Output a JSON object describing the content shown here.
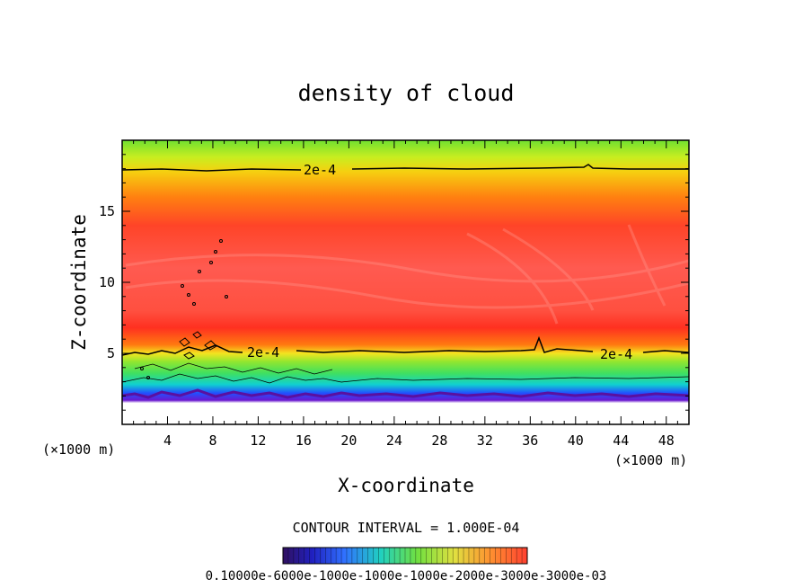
{
  "chart_data": {
    "type": "heatmap",
    "title": "density of cloud",
    "xlabel": "X-coordinate",
    "ylabel": "Z-coordinate",
    "x_unit": "(×1000 m)",
    "y_unit": "(×1000 m)",
    "x_ticks": [
      4,
      8,
      12,
      16,
      20,
      24,
      28,
      32,
      36,
      40,
      44,
      48
    ],
    "y_ticks": [
      5,
      10,
      15
    ],
    "xlim": [
      0,
      50
    ],
    "ylim": [
      0,
      20
    ],
    "contour_interval_text": "CONTOUR INTERVAL = 1.000E-04",
    "contour_labels": [
      {
        "text": "2e-4",
        "x": 17.5,
        "z": 17.9
      },
      {
        "text": "2e-4",
        "x": 13.0,
        "z": 5.1
      },
      {
        "text": "2e-4",
        "x": 44.0,
        "z": 5.0
      }
    ],
    "field_profile": [
      {
        "z": 1.5,
        "level": "none"
      },
      {
        "z": 2.5,
        "level": "violet"
      },
      {
        "z": 3.2,
        "level": "blue"
      },
      {
        "z": 4.0,
        "level": "cyan"
      },
      {
        "z": 4.8,
        "level": "green"
      },
      {
        "z": 5.5,
        "level": "yellow"
      },
      {
        "z": 7.5,
        "level": "red"
      },
      {
        "z": 12.0,
        "level": "red"
      },
      {
        "z": 15.5,
        "level": "orange"
      },
      {
        "z": 18.0,
        "level": "yellow"
      },
      {
        "z": 20.0,
        "level": "green"
      }
    ],
    "colorbar_labels": "0.10000e-6000e-1000e-1000e-1000e-2000e-3000e-3000e-03"
  },
  "colors": {
    "violet": "#7a10c8",
    "blue": "#2040ff",
    "cyan": "#10d8e0",
    "green": "#50e040",
    "yellow": "#f0f020",
    "orange": "#ff8a10",
    "red": "#ff3a30",
    "lightred": "#ff6a60"
  }
}
